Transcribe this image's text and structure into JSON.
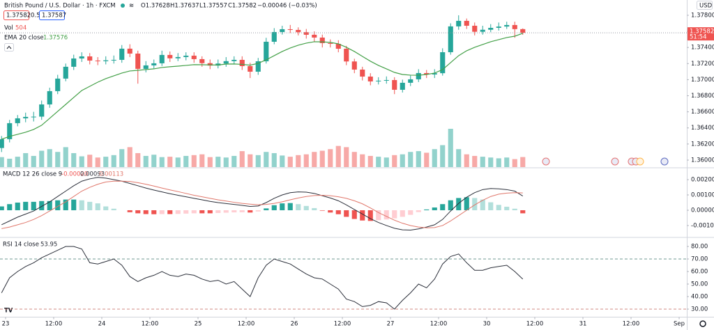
{
  "chart_data": [
    {
      "type": "candlestick",
      "title": "British Pound / U.S. Dollar · 1h · FXCM",
      "ohlc_labels": [
        "O1.37628",
        "H1.37637",
        "L1.37557",
        "C1.37582",
        "−0.00046 (−0.03%)"
      ],
      "quote": {
        "sell": "1.37582",
        "spread": "0.5",
        "buy": "1.37587"
      },
      "volume_label": "Vol",
      "ema_label": "EMA 20 close",
      "currency": "USD",
      "countdown": "51:54",
      "x": [
        -1,
        1,
        3,
        5,
        7,
        9,
        11,
        13,
        15,
        17,
        19,
        21,
        23,
        25,
        27,
        29,
        31,
        33,
        35,
        37,
        39,
        41,
        43,
        45,
        47,
        49,
        51,
        53,
        55,
        57,
        59,
        61,
        63,
        65,
        67,
        69,
        71,
        73,
        75,
        77,
        79,
        81,
        83,
        85,
        87,
        89,
        91,
        93,
        95,
        97,
        99,
        101,
        103,
        105,
        107,
        109,
        111,
        113,
        115,
        117,
        119,
        121,
        123,
        125,
        127,
        129
      ],
      "open": [
        1.3615,
        1.3626,
        1.36459,
        1.36519,
        1.36537,
        1.3654,
        1.36692,
        1.36857,
        1.37013,
        1.3716,
        1.37263,
        1.37289,
        1.37237,
        1.37229,
        1.3724,
        1.37246,
        1.37385,
        1.37324,
        1.37134,
        1.37177,
        1.37203,
        1.37307,
        1.37265,
        1.37281,
        1.37298,
        1.37255,
        1.37205,
        1.37175,
        1.372,
        1.3723,
        1.37246,
        1.37168,
        1.37099,
        1.37228,
        1.37471,
        1.37592,
        1.37627,
        1.37618,
        1.3759,
        1.37558,
        1.37523,
        1.37454,
        1.37445,
        1.37384,
        1.37226,
        1.37125,
        1.37038,
        1.36978,
        1.36987,
        1.36995,
        1.36874,
        1.36961,
        1.37004,
        1.37082,
        1.37064,
        1.3708,
        1.37341,
        1.37662,
        1.37731,
        1.3767,
        1.37595,
        1.3762,
        1.37644,
        1.3766,
        1.37679,
        1.37628
      ],
      "high": [
        1.363,
        1.365,
        1.3656,
        1.3659,
        1.366,
        1.3674,
        1.369,
        1.3706,
        1.372,
        1.3731,
        1.3734,
        1.3733,
        1.3728,
        1.3729,
        1.373,
        1.3743,
        1.3744,
        1.3736,
        1.3723,
        1.3725,
        1.3736,
        1.3735,
        1.3733,
        1.3734,
        1.3734,
        1.3729,
        1.3725,
        1.3725,
        1.3728,
        1.3729,
        1.3729,
        1.3721,
        1.3727,
        1.3752,
        1.3764,
        1.3767,
        1.3768,
        1.3765,
        1.3763,
        1.376,
        1.3756,
        1.375,
        1.3749,
        1.3742,
        1.3726,
        1.3716,
        1.3708,
        1.3703,
        1.3704,
        1.3703,
        1.37,
        1.3705,
        1.3713,
        1.3712,
        1.3713,
        1.3739,
        1.377,
        1.378,
        1.3776,
        1.3771,
        1.3767,
        1.3769,
        1.3771,
        1.3772,
        1.3772,
        1.37637
      ],
      "low": [
        1.361,
        1.3622,
        1.3642,
        1.3647,
        1.3648,
        1.365,
        1.3665,
        1.3682,
        1.3698,
        1.3712,
        1.3722,
        1.3719,
        1.3718,
        1.3719,
        1.372,
        1.3721,
        1.3728,
        1.3695,
        1.3709,
        1.3714,
        1.3717,
        1.3722,
        1.3723,
        1.3724,
        1.3721,
        1.3716,
        1.3713,
        1.3714,
        1.3716,
        1.3719,
        1.3712,
        1.3702,
        1.3706,
        1.372,
        1.3744,
        1.3756,
        1.3758,
        1.3755,
        1.3751,
        1.3747,
        1.374,
        1.374,
        1.3734,
        1.3718,
        1.3708,
        1.3699,
        1.3693,
        1.3694,
        1.3695,
        1.3682,
        1.3684,
        1.3692,
        1.3697,
        1.3702,
        1.3702,
        1.3705,
        1.3731,
        1.3762,
        1.3763,
        1.3755,
        1.3756,
        1.3759,
        1.3761,
        1.3763,
        1.3752,
        1.37557
      ],
      "close": [
        1.3626,
        1.36459,
        1.36519,
        1.36537,
        1.3654,
        1.36692,
        1.36857,
        1.37013,
        1.3716,
        1.37263,
        1.37289,
        1.37237,
        1.37229,
        1.3724,
        1.37246,
        1.37385,
        1.37324,
        1.37134,
        1.37177,
        1.37203,
        1.37307,
        1.37265,
        1.37281,
        1.37298,
        1.37255,
        1.37205,
        1.37175,
        1.372,
        1.3723,
        1.37246,
        1.37168,
        1.37099,
        1.37228,
        1.37471,
        1.37592,
        1.37627,
        1.37618,
        1.3759,
        1.37558,
        1.37523,
        1.37454,
        1.37445,
        1.37384,
        1.37226,
        1.37125,
        1.37038,
        1.36978,
        1.36987,
        1.36995,
        1.36874,
        1.36961,
        1.37004,
        1.37082,
        1.37064,
        1.3708,
        1.37341,
        1.37662,
        1.37731,
        1.3767,
        1.37595,
        1.3762,
        1.37644,
        1.3766,
        1.37679,
        1.37628,
        1.37582
      ],
      "volume": [
        500,
        420,
        520,
        700,
        560,
        820,
        900,
        760,
        1000,
        700,
        540,
        620,
        480,
        520,
        600,
        900,
        1000,
        700,
        560,
        620,
        500,
        520,
        480,
        560,
        600,
        640,
        500,
        520,
        480,
        560,
        800,
        640,
        600,
        760,
        700,
        580,
        520,
        600,
        640,
        760,
        820,
        900,
        1060,
        1000,
        760,
        640,
        560,
        520,
        480,
        600,
        640,
        760,
        800,
        720,
        900,
        1100,
        1920,
        900,
        640,
        560,
        520,
        480,
        440,
        480,
        400,
        504
      ],
      "ema": [
        1.3626,
        1.36294,
        1.3632,
        1.36346,
        1.36381,
        1.36433,
        1.36519,
        1.36606,
        1.36692,
        1.36779,
        1.36865,
        1.36917,
        1.36969,
        1.37013,
        1.37047,
        1.37082,
        1.37108,
        1.37116,
        1.37125,
        1.37134,
        1.37151,
        1.3716,
        1.37168,
        1.37177,
        1.37186,
        1.37185,
        1.37183,
        1.37182,
        1.37194,
        1.37195,
        1.3719,
        1.3718,
        1.37203,
        1.37246,
        1.37298,
        1.3735,
        1.37393,
        1.37428,
        1.37454,
        1.37471,
        1.3747,
        1.37463,
        1.37445,
        1.37402,
        1.3735,
        1.37289,
        1.37229,
        1.37177,
        1.37134,
        1.3709,
        1.37064,
        1.37056,
        1.37055,
        1.37064,
        1.37082,
        1.37125,
        1.37212,
        1.37298,
        1.37359,
        1.37402,
        1.37437,
        1.37471,
        1.37497,
        1.37523,
        1.3754,
        1.37576
      ],
      "up_color": "#26a69a",
      "down_color": "#ef5350",
      "volume_up_color": "rgba(38,166,154,0.5)",
      "volume_down_color": "rgba(239,83,80,0.5)",
      "ema_color": "#43a047",
      "xlim": [
        -1.39,
        169.91
      ],
      "xticks": [
        {
          "value": 0,
          "label": "23"
        },
        {
          "value": 12,
          "label": "12:00"
        },
        {
          "value": 24,
          "label": "24"
        },
        {
          "value": 36,
          "label": "12:00"
        },
        {
          "value": 48,
          "label": "25"
        },
        {
          "value": 60,
          "label": "12:00"
        },
        {
          "value": 72,
          "label": "26"
        },
        {
          "value": 84,
          "label": "12:00"
        },
        {
          "value": 96,
          "label": "27"
        },
        {
          "value": 108,
          "label": "12:00"
        },
        {
          "value": 120,
          "label": "30"
        },
        {
          "value": 132,
          "label": "12:00"
        },
        {
          "value": 144,
          "label": "31"
        },
        {
          "value": 156,
          "label": "12:00"
        },
        {
          "value": 168,
          "label": "Sep"
        }
      ],
      "ylim": [
        1.35913,
        1.3799
      ],
      "yticks": [
        {
          "value": 1.378,
          "label": "1.37800"
        },
        {
          "value": 1.376,
          "label": "1.37600"
        },
        {
          "value": 1.374,
          "label": "1.37400"
        },
        {
          "value": 1.372,
          "label": "1.37200"
        },
        {
          "value": 1.37,
          "label": "1.37000"
        },
        {
          "value": 1.368,
          "label": "1.36800"
        },
        {
          "value": 1.366,
          "label": "1.36600"
        },
        {
          "value": 1.364,
          "label": "1.36400"
        },
        {
          "value": 1.362,
          "label": "1.36200"
        },
        {
          "value": 1.36,
          "label": "1.36000"
        }
      ]
    },
    {
      "type": "macd",
      "title": "MACD 12 26 close 9",
      "legend_labels": [
        "-0.00020",
        "0.00093",
        "0.00113"
      ],
      "histogram": [
        0.00025,
        0.0004,
        0.0005,
        0.00055,
        0.00055,
        0.0006,
        0.0006,
        0.00065,
        0.0007,
        0.0007,
        0.00065,
        0.00055,
        0.00045,
        0.00025,
        0.0001,
        0,
        -0.00013,
        -0.0002,
        -0.00025,
        -0.00026,
        -0.00025,
        -0.00025,
        -0.00024,
        -0.00022,
        -0.0002,
        -0.0002,
        -0.0002,
        -0.00018,
        -0.00016,
        -0.00014,
        -0.00013,
        -0.00015,
        -8e-05,
        0.00012,
        0.00033,
        0.00045,
        0.00047,
        0.0004,
        0.00028,
        0.00014,
        -3e-05,
        -0.00015,
        -0.00026,
        -0.00043,
        -0.00057,
        -0.00067,
        -0.0007,
        -0.00065,
        -0.0006,
        -0.00053,
        -0.00043,
        -0.0003,
        -0.00012,
        5e-05,
        0.00018,
        0.0004,
        0.00065,
        0.0008,
        0.00085,
        0.0008,
        0.0007,
        0.00052,
        0.00035,
        0.00023,
        0.0001,
        -0.0002
      ],
      "macd": [
        -0.00095,
        -0.0007,
        -0.00045,
        -0.00025,
        -5e-05,
        0.00025,
        0.00055,
        0.0009,
        0.00125,
        0.0016,
        0.0019,
        0.00205,
        0.00215,
        0.0021,
        0.002,
        0.0019,
        0.00175,
        0.0016,
        0.00145,
        0.00132,
        0.0012,
        0.00108,
        0.00098,
        0.00088,
        0.00078,
        0.00068,
        0.00058,
        0.0005,
        0.00044,
        0.00038,
        0.00032,
        0.00025,
        0.00028,
        0.0005,
        0.00078,
        0.001,
        0.00115,
        0.0012,
        0.00118,
        0.0011,
        0.00095,
        0.0008,
        0.00062,
        0.00035,
        5e-05,
        -0.00025,
        -0.00055,
        -0.0008,
        -0.001,
        -0.00118,
        -0.00128,
        -0.0013,
        -0.00122,
        -0.0011,
        -0.00095,
        -0.0006,
        -5e-05,
        0.00045,
        0.00085,
        0.00115,
        0.00135,
        0.00142,
        0.0014,
        0.00135,
        0.00125,
        0.00093
      ],
      "signal": [
        -0.0012,
        -0.0011,
        -0.00095,
        -0.0008,
        -0.0006,
        -0.00035,
        -5e-05,
        0.00025,
        0.00055,
        0.0009,
        0.00125,
        0.0015,
        0.0017,
        0.00185,
        0.0019,
        0.0019,
        0.00188,
        0.0018,
        0.0017,
        0.00158,
        0.00145,
        0.00133,
        0.00122,
        0.0011,
        0.00098,
        0.00088,
        0.00078,
        0.00068,
        0.0006,
        0.00052,
        0.00045,
        0.0004,
        0.00036,
        0.00038,
        0.00045,
        0.00055,
        0.00068,
        0.0008,
        0.0009,
        0.00096,
        0.00098,
        0.00095,
        0.00088,
        0.00078,
        0.00062,
        0.00042,
        0.00015,
        -0.00015,
        -0.0004,
        -0.00065,
        -0.00085,
        -0.001,
        -0.0011,
        -0.00115,
        -0.00113,
        -0.001,
        -0.0007,
        -0.00035,
        0,
        0.00035,
        0.00065,
        0.0009,
        0.00105,
        0.00112,
        0.00115,
        0.00113
      ],
      "hist_colors": [
        "#26a69a",
        "#b2dfdb",
        "#ffcdd2",
        "#ef5350"
      ],
      "macd_color": "#2a2e39",
      "signal_color": "#e0766a",
      "ylim": [
        -0.00173,
        0.00273
      ],
      "yticks": [
        {
          "value": 0.002,
          "label": "0.00200"
        },
        {
          "value": 0.001,
          "label": "0.00100"
        },
        {
          "value": 0,
          "label": "0.00000"
        },
        {
          "value": -0.001,
          "label": "-0.00100"
        }
      ]
    },
    {
      "type": "line",
      "title": "RSI 14 close",
      "values": [
        43,
        55,
        60,
        64,
        67,
        71,
        74,
        77,
        80,
        80,
        78,
        67,
        66,
        68,
        70,
        65,
        56,
        52,
        55,
        57,
        60,
        57,
        56,
        58,
        57,
        54,
        52,
        53,
        50,
        52,
        46,
        40,
        55,
        65,
        70,
        68,
        66,
        62,
        58,
        55,
        54,
        50,
        46,
        38,
        36,
        32,
        33,
        36,
        35,
        30,
        37,
        43,
        50,
        47,
        54,
        66,
        72,
        74,
        67,
        61,
        61,
        63,
        64,
        65,
        60,
        53.95
      ],
      "color": "#2a2e39",
      "levels": [
        70,
        30
      ],
      "level_colors": [
        "#6f9a90",
        "#d08a80"
      ],
      "ylim": [
        23.89,
        86.67
      ],
      "yticks": [
        {
          "value": 80,
          "label": "80.00"
        },
        {
          "value": 70,
          "label": "70.00"
        },
        {
          "value": 60,
          "label": "60.00"
        },
        {
          "value": 50,
          "label": "50.00"
        },
        {
          "value": 40,
          "label": "40.00"
        },
        {
          "value": 30,
          "label": "30.00"
        }
      ]
    }
  ]
}
